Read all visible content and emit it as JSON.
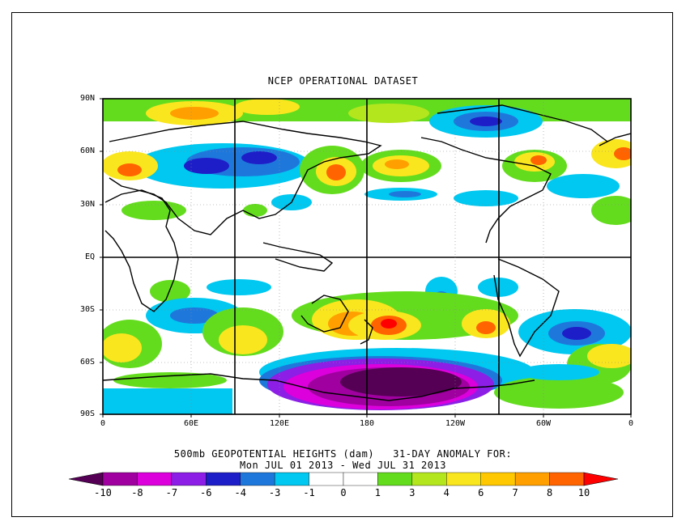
{
  "title": "NCEP OPERATIONAL DATASET",
  "caption_line1": "500mb GEOPOTENTIAL HEIGHTS (dam)   31-DAY ANOMALY FOR:",
  "caption_line2": "Mon JUL 01 2013 - Wed JUL 31 2013",
  "lat_labels": [
    "90N",
    "60N",
    "30N",
    "EQ",
    "30S",
    "60S",
    "90S"
  ],
  "lon_labels": [
    "0",
    "60E",
    "120E",
    "180",
    "120W",
    "60W",
    "0"
  ],
  "colorbar": {
    "colors": [
      "#550055",
      "#a000a0",
      "#dc00dc",
      "#8c1ee6",
      "#1e1ec8",
      "#1e78dc",
      "#00c8f0",
      "#ffffff",
      "#ffffff",
      "#64dc1e",
      "#b4e61e",
      "#fae61e",
      "#ffc800",
      "#ffa000",
      "#ff6400",
      "#ff0000"
    ],
    "labels": [
      "-10",
      "-8",
      "-7",
      "-6",
      "-4",
      "-3",
      "-1",
      "0",
      "1",
      "3",
      "4",
      "6",
      "7",
      "8",
      "10"
    ]
  },
  "icons": {
    "map": "world-map-anomaly",
    "colorbar": "color-scale-legend"
  }
}
